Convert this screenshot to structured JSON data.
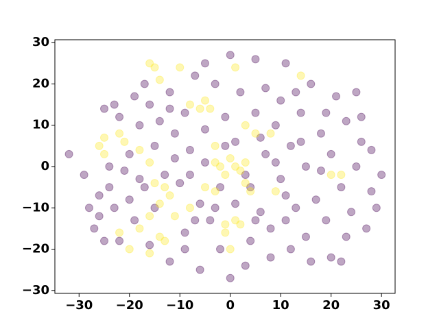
{
  "chart_data": {
    "type": "scatter",
    "xlim": [
      -34.8,
      32.7
    ],
    "ylim": [
      -30.7,
      30.7
    ],
    "xticks": [
      {
        "value": -30,
        "label": "−30"
      },
      {
        "value": -20,
        "label": "−20"
      },
      {
        "value": -10,
        "label": "−10"
      },
      0,
      10,
      20,
      30
    ],
    "yticks": [
      {
        "value": -30,
        "label": "−30"
      },
      {
        "value": -20,
        "label": "−20"
      },
      {
        "value": -10,
        "label": "−10"
      },
      0,
      10,
      20,
      30
    ],
    "alpha": 0.35,
    "series": [
      {
        "color": "#440154",
        "x": [
          -32,
          -29,
          -28,
          -27,
          -25,
          -26,
          -24,
          -25,
          -23,
          -24,
          -22,
          -21,
          -20,
          -19,
          -18,
          -19,
          -17,
          -16,
          -17,
          -15,
          -14,
          -13,
          -12,
          -11,
          -10,
          -9,
          -9,
          -8,
          -7,
          -6,
          -5,
          -5,
          -4,
          -3,
          -2,
          -1,
          0,
          0,
          1,
          1,
          2,
          3,
          4,
          5,
          5,
          6,
          7,
          7,
          8,
          9,
          10,
          10,
          11,
          12,
          12,
          13,
          14,
          15,
          15,
          16,
          17,
          18,
          19,
          20,
          20,
          21,
          22,
          23,
          24,
          25,
          25,
          26,
          27,
          28,
          28,
          29,
          30,
          -22,
          -26,
          -16,
          -12,
          -6,
          3,
          8,
          16,
          22,
          -18,
          -8,
          -2,
          4,
          11,
          18,
          -20,
          -11,
          -5,
          9,
          14,
          -15,
          -7,
          5,
          19,
          -12,
          -1,
          6,
          26,
          -23,
          13,
          -3,
          -9,
          11,
          23
        ],
        "values": [
          3,
          -2,
          -10,
          -15,
          -18,
          -7,
          0,
          14,
          15,
          -5,
          12,
          -1,
          -8,
          -13,
          10,
          17,
          20,
          15,
          -5,
          5,
          11,
          -2,
          18,
          8,
          -4,
          -16,
          13,
          4,
          22,
          -9,
          25,
          9,
          -13,
          20,
          -20,
          12,
          27,
          -27,
          6,
          -9,
          18,
          -2,
          -18,
          26,
          13,
          -11,
          3,
          19,
          -15,
          10,
          -3,
          16,
          25,
          -20,
          5,
          -10,
          13,
          0,
          -17,
          20,
          -8,
          8,
          -13,
          3,
          -22,
          17,
          -5,
          11,
          -11,
          0,
          18,
          6,
          -15,
          -6,
          4,
          -10,
          -2,
          -18,
          -12,
          -19,
          -23,
          -25,
          -24,
          -22,
          -23,
          -23,
          -3,
          -2,
          -5,
          -5,
          -7,
          -1,
          3,
          2,
          1,
          1,
          6,
          -10,
          -13,
          -13,
          13,
          14,
          5,
          7,
          12,
          -10,
          18,
          -10,
          -20,
          -13,
          -17
        ]
      },
      {
        "color": "#fde725",
        "x": [
          -25,
          -26,
          -25,
          -22,
          -21,
          -18,
          -16,
          -15,
          -13,
          -12,
          -14,
          -16,
          -18,
          -22,
          -20,
          -14,
          -13,
          -16,
          -16,
          -15,
          -14,
          -10,
          -8,
          -6,
          -5,
          -4,
          -3,
          -5,
          -3,
          -1,
          -2,
          -3,
          0,
          1,
          2,
          3,
          3,
          4,
          1,
          -1,
          -1,
          2,
          3,
          5,
          8,
          9,
          14,
          20,
          22,
          -8,
          -11,
          0,
          1
        ],
        "values": [
          7,
          5,
          3,
          8,
          6,
          4,
          1,
          -4,
          -5,
          -7,
          -9,
          -12,
          -15,
          -16,
          -20,
          -17,
          -18,
          -21,
          25,
          24,
          21,
          24,
          15,
          14,
          16,
          14,
          5,
          -5,
          -6,
          -2,
          0,
          1,
          2,
          0,
          -1,
          1,
          -4,
          -6,
          -13,
          -14,
          -16,
          -14,
          10,
          8,
          8,
          -6,
          22,
          -2,
          -2,
          -10,
          -12,
          -20,
          24
        ]
      }
    ]
  }
}
